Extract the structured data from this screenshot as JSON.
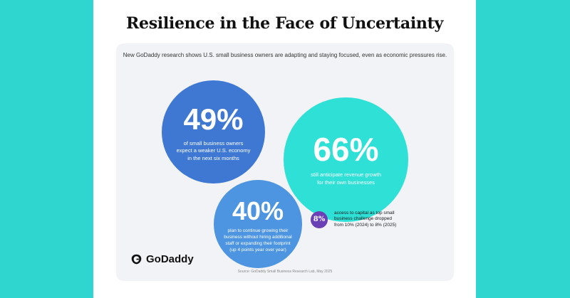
{
  "infographic": {
    "title": "Resilience in the Face of Uncertainty",
    "subtitle": "New GoDaddy research shows U.S. small business owners are adapting and staying focused, even as economic pressures rise.",
    "stats": [
      {
        "value": "49%",
        "description": "of small business owners\nexpect a weaker U.S. economy\nin the next six months",
        "color": "#3e78d3"
      },
      {
        "value": "66%",
        "description": "still anticipate revenue growth\nfor their own businesses",
        "color": "#2ee0d6"
      },
      {
        "value": "40%",
        "description": "plan to continue growing their\nbusiness without hiring additional\nstaff or expanding their footprint\n(up 4 points year over year)",
        "color": "#4d95e0"
      },
      {
        "value": "8%",
        "description": "access to capital as top small\nbusiness challenge dropped\nfrom 10% (2024) to 8% (2025)",
        "color": "#6b3fb5"
      }
    ],
    "logo_text": "GoDaddy",
    "source": "Source: GoDaddy Small Business Research Lab, May 2025"
  },
  "colors": {
    "background": "#2fd5cf",
    "card": "#ffffff",
    "panel": "#f1f3f6"
  }
}
